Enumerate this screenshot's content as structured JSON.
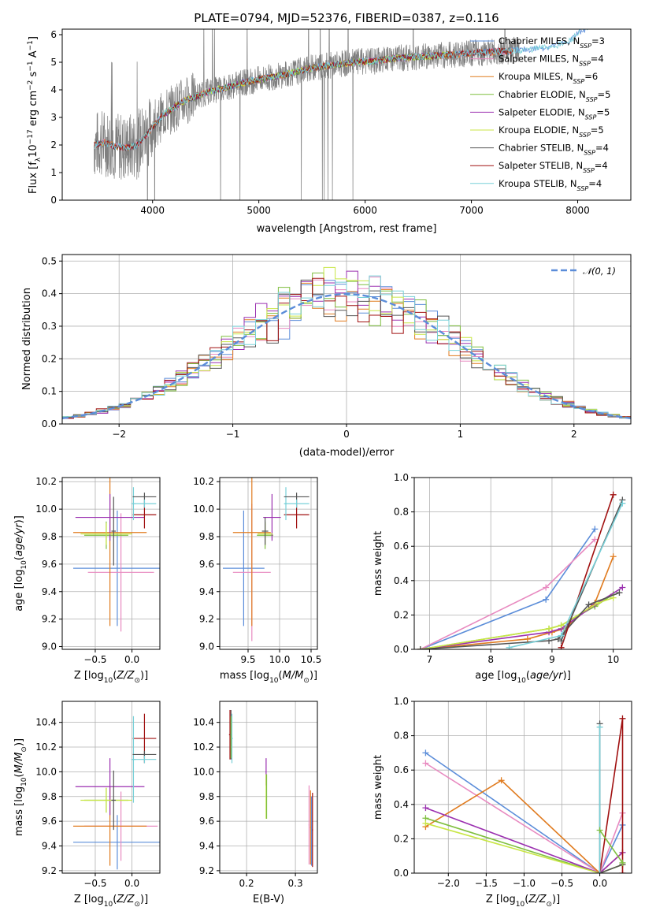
{
  "colors": {
    "chabrier_miles": "#5b8dd9",
    "salpeter_miles": "#e88ac0",
    "kroupa_miles": "#e07b1f",
    "chabrier_elodie": "#7fbf3f",
    "salpeter_elodie": "#9b30b0",
    "kroupa_elodie": "#c8e645",
    "chabrier_stelib": "#555555",
    "salpeter_stelib": "#a01010",
    "kroupa_stelib": "#78d0d8",
    "data": "#7f7f7f",
    "grid": "#b0b0b0"
  },
  "chart_data": [
    {
      "id": "spectrum",
      "type": "line",
      "title": "PLATE=0794, MJD=52376, FIBERID=0387, z=0.116",
      "xlabel": "wavelength [Angstrom, rest frame]",
      "ylabel": "Flux [f_λ10^-17 erg cm^-2 s^-1 A^-1]",
      "xlim": [
        3150,
        8500
      ],
      "ylim": [
        0,
        6.2
      ],
      "xticks": [
        "4000",
        "5000",
        "6000",
        "7000",
        "8000"
      ],
      "yticks": [
        "0",
        "1",
        "2",
        "3",
        "4",
        "5",
        "6"
      ],
      "grid": false,
      "legend_position": "top-right",
      "legend": [
        {
          "label": "Chabrier MILES, N",
          "sub": "SSP",
          "tail": "=3",
          "key": "chabrier_miles"
        },
        {
          "label": "Salpeter MILES, N",
          "sub": "SSP",
          "tail": "=4",
          "key": "salpeter_miles"
        },
        {
          "label": "Kroupa MILES, N",
          "sub": "SSP",
          "tail": "=6",
          "key": "kroupa_miles"
        },
        {
          "label": "Chabrier ELODIE, N",
          "sub": "SSP",
          "tail": "=5",
          "key": "chabrier_elodie"
        },
        {
          "label": "Salpeter ELODIE, N",
          "sub": "SSP",
          "tail": "=5",
          "key": "salpeter_elodie"
        },
        {
          "label": "Kroupa ELODIE, N",
          "sub": "SSP",
          "tail": "=5",
          "key": "kroupa_elodie"
        },
        {
          "label": "Chabrier STELIB, N",
          "sub": "SSP",
          "tail": "=4",
          "key": "chabrier_stelib"
        },
        {
          "label": "Salpeter STELIB, N",
          "sub": "SSP",
          "tail": "=4",
          "key": "salpeter_stelib"
        },
        {
          "label": "Kroupa STELIB, N",
          "sub": "SSP",
          "tail": "=4",
          "key": "kroupa_stelib"
        }
      ],
      "model_continuum": {
        "x": [
          3450,
          3550,
          3650,
          3750,
          3850,
          3950,
          4100,
          4300,
          4500,
          4700,
          4900,
          5100,
          5300,
          5500,
          5700,
          5900,
          6100,
          6300,
          6500,
          6700,
          6900,
          7100,
          7300,
          7500,
          7700,
          7900,
          8050
        ],
        "y": [
          2.0,
          2.1,
          1.95,
          1.9,
          2.0,
          2.4,
          3.1,
          3.6,
          3.9,
          4.1,
          4.3,
          4.45,
          4.6,
          4.8,
          4.9,
          5.0,
          5.05,
          5.15,
          5.2,
          5.25,
          5.3,
          5.35,
          5.4,
          5.45,
          5.55,
          5.7,
          6.2
        ]
      },
      "data_noise_amplitude": 0.9
    },
    {
      "id": "residuals",
      "type": "histogram",
      "xlabel": "(data-model)/error",
      "ylabel": "Normed distribution",
      "xlim": [
        -2.5,
        2.5
      ],
      "ylim": [
        0,
        0.52
      ],
      "xticks": [
        "−2",
        "−1",
        "0",
        "1",
        "2"
      ],
      "yticks": [
        "0.0",
        "0.1",
        "0.2",
        "0.3",
        "0.4",
        "0.5"
      ],
      "grid": true,
      "bin_width": 0.1,
      "legend_position": "top-right",
      "legend": [
        {
          "label": "N(0, 1)",
          "script": "𝒩(0, 1)",
          "style": "dashed",
          "key": "chabrier_miles"
        }
      ]
    },
    {
      "id": "age_vs_Z",
      "type": "errorbar",
      "xlabel": "Z [log10(Z/Z⊙)]",
      "ylabel": "age [log10(age/yr)]",
      "xlim": [
        -0.95,
        0.38
      ],
      "ylim": [
        8.98,
        10.23
      ],
      "xticks": [
        "−0.5",
        "0.0"
      ],
      "yticks": [
        "9.0",
        "9.2",
        "9.4",
        "9.6",
        "9.8",
        "10.0",
        "10.2"
      ],
      "grid": true,
      "points": [
        {
          "key": "chabrier_miles",
          "x": -0.2,
          "xerr": 0.6,
          "y": 9.57,
          "yerr": 0.42
        },
        {
          "key": "salpeter_miles",
          "x": -0.15,
          "xerr": 0.45,
          "y": 9.54,
          "yerr": 0.43
        },
        {
          "key": "kroupa_miles",
          "x": -0.3,
          "xerr": 0.5,
          "y": 9.83,
          "yerr": 0.68
        },
        {
          "key": "chabrier_elodie",
          "x": -0.35,
          "xerr": 0.3,
          "y": 9.81,
          "yerr": 0.1
        },
        {
          "key": "salpeter_elodie",
          "x": -0.3,
          "xerr": 0.47,
          "y": 9.94,
          "yerr": 0.17
        },
        {
          "key": "kroupa_elodie",
          "x": -0.35,
          "xerr": 0.35,
          "y": 9.82,
          "yerr": 0.08
        },
        {
          "key": "chabrier_stelib",
          "x": -0.25,
          "xerr": 0.03,
          "y": 9.84,
          "yerr": 0.25
        },
        {
          "key": "salpeter_stelib",
          "x": 0.17,
          "xerr": 0.16,
          "y": 9.96,
          "yerr": 0.1
        },
        {
          "key": "kroupa_stelib",
          "x": 0.02,
          "xerr": 0.03,
          "y": 10.04,
          "yerr": 0.12
        },
        {
          "key": "chabrier_stelib",
          "x": 0.17,
          "xerr": 0.16,
          "y": 10.09,
          "yerr": 0.03
        },
        {
          "key": "kroupa_stelib",
          "x": 0.17,
          "xerr": 0.16,
          "y": 10.04,
          "yerr": 0.03
        }
      ]
    },
    {
      "id": "age_vs_mass",
      "type": "errorbar",
      "xlabel": "mass [log10(M/M⊙)]",
      "ylabel": "",
      "xlim": [
        9.05,
        10.6
      ],
      "ylim": [
        8.98,
        10.23
      ],
      "xticks": [
        "9.5",
        "10.0",
        "10.5"
      ],
      "yticks": [
        "9.0",
        "9.2",
        "9.4",
        "9.6",
        "9.8",
        "10.0",
        "10.2"
      ],
      "grid": true,
      "points": [
        {
          "key": "chabrier_miles",
          "x": 9.43,
          "xerr": 0.33,
          "y": 9.57,
          "yerr": 0.42
        },
        {
          "key": "salpeter_miles",
          "x": 9.56,
          "xerr": 0.3,
          "y": 9.54,
          "yerr": 0.5
        },
        {
          "key": "kroupa_miles",
          "x": 9.56,
          "xerr": 0.3,
          "y": 9.83,
          "yerr": 0.68
        },
        {
          "key": "chabrier_elodie",
          "x": 9.77,
          "xerr": 0.13,
          "y": 9.81,
          "yerr": 0.1
        },
        {
          "key": "salpeter_elodie",
          "x": 9.88,
          "xerr": 0.14,
          "y": 9.94,
          "yerr": 0.17
        },
        {
          "key": "kroupa_elodie",
          "x": 9.77,
          "xerr": 0.12,
          "y": 9.82,
          "yerr": 0.08
        },
        {
          "key": "chabrier_stelib",
          "x": 9.77,
          "xerr": 0.05,
          "y": 9.84,
          "yerr": 0.1
        },
        {
          "key": "salpeter_stelib",
          "x": 10.27,
          "xerr": 0.2,
          "y": 9.96,
          "yerr": 0.1
        },
        {
          "key": "kroupa_stelib",
          "x": 10.1,
          "xerr": 0.02,
          "y": 10.04,
          "yerr": 0.12
        },
        {
          "key": "chabrier_stelib",
          "x": 10.27,
          "xerr": 0.2,
          "y": 10.09,
          "yerr": 0.03
        },
        {
          "key": "kroupa_stelib",
          "x": 10.27,
          "xerr": 0.2,
          "y": 10.04,
          "yerr": 0.03
        }
      ]
    },
    {
      "id": "weight_vs_age",
      "type": "line",
      "xlabel": "age [log10(age/yr)]",
      "ylabel": "mass weight",
      "xlim": [
        6.75,
        10.3
      ],
      "ylim": [
        0,
        1.0
      ],
      "xticks": [
        "7",
        "8",
        "9",
        "10"
      ],
      "yticks": [
        "0.0",
        "0.2",
        "0.4",
        "0.6",
        "0.8",
        "1.0"
      ],
      "grid": true,
      "series": [
        {
          "key": "chabrier_miles",
          "x": [
            6.85,
            8.9,
            9.7
          ],
          "y": [
            0.0,
            0.29,
            0.7
          ]
        },
        {
          "key": "salpeter_miles",
          "x": [
            6.85,
            8.9,
            9.7
          ],
          "y": [
            0.0,
            0.36,
            0.64
          ]
        },
        {
          "key": "kroupa_miles",
          "x": [
            6.85,
            8.6,
            9.0,
            9.2,
            9.7,
            10.0
          ],
          "y": [
            0.0,
            0.06,
            0.1,
            0.12,
            0.27,
            0.54
          ]
        },
        {
          "key": "chabrier_elodie",
          "x": [
            6.85,
            8.95,
            9.15,
            9.7,
            10.0
          ],
          "y": [
            0.0,
            0.12,
            0.14,
            0.25,
            0.32
          ]
        },
        {
          "key": "salpeter_elodie",
          "x": [
            6.85,
            8.95,
            9.15,
            9.7,
            10.15
          ],
          "y": [
            0.0,
            0.1,
            0.12,
            0.26,
            0.36
          ]
        },
        {
          "key": "kroupa_elodie",
          "x": [
            6.85,
            8.95,
            9.15,
            9.75,
            10.0
          ],
          "y": [
            0.0,
            0.12,
            0.14,
            0.27,
            0.3
          ]
        },
        {
          "key": "chabrier_stelib",
          "x": [
            6.85,
            8.95,
            9.1,
            9.6,
            10.1
          ],
          "y": [
            0.0,
            0.05,
            0.06,
            0.26,
            0.33
          ]
        },
        {
          "key": "salpeter_stelib",
          "x": [
            9.15,
            10.0
          ],
          "y": [
            0.01,
            0.9
          ]
        },
        {
          "key": "chabrier_stelib",
          "x": [
            9.15,
            10.15
          ],
          "y": [
            0.05,
            0.87
          ]
        },
        {
          "key": "kroupa_stelib",
          "x": [
            8.3,
            9.15,
            10.15
          ],
          "y": [
            0.01,
            0.08,
            0.85
          ]
        }
      ]
    },
    {
      "id": "mass_vs_Z",
      "type": "errorbar",
      "xlabel": "Z [log10(Z/Z⊙)]",
      "ylabel": "mass [log10(M/M⊙)]",
      "xlim": [
        -0.95,
        0.38
      ],
      "ylim": [
        9.18,
        10.57
      ],
      "xticks": [
        "−0.5",
        "0.0"
      ],
      "yticks": [
        "9.2",
        "9.4",
        "9.6",
        "9.8",
        "10.0",
        "10.2",
        "10.4"
      ],
      "grid": true,
      "points": [
        {
          "key": "chabrier_miles",
          "x": -0.2,
          "xerr": 0.6,
          "y": 9.43,
          "yerr": 0.22
        },
        {
          "key": "salpeter_miles",
          "x": -0.15,
          "xerr": 0.5,
          "y": 9.56,
          "yerr": 0.28
        },
        {
          "key": "kroupa_miles",
          "x": -0.3,
          "xerr": 0.5,
          "y": 9.56,
          "yerr": 0.32
        },
        {
          "key": "chabrier_elodie",
          "x": -0.35,
          "xerr": 0.3,
          "y": 9.77,
          "yerr": 0.1
        },
        {
          "key": "salpeter_elodie",
          "x": -0.3,
          "xerr": 0.47,
          "y": 9.88,
          "yerr": 0.23
        },
        {
          "key": "kroupa_elodie",
          "x": -0.35,
          "xerr": 0.35,
          "y": 9.77,
          "yerr": 0.1
        },
        {
          "key": "chabrier_stelib",
          "x": -0.25,
          "xerr": 0.03,
          "y": 9.77,
          "yerr": 0.24
        },
        {
          "key": "salpeter_stelib",
          "x": 0.17,
          "xerr": 0.16,
          "y": 10.27,
          "yerr": 0.2
        },
        {
          "key": "kroupa_stelib",
          "x": 0.02,
          "xerr": 0.03,
          "y": 10.1,
          "yerr": 0.35
        },
        {
          "key": "chabrier_stelib",
          "x": 0.17,
          "xerr": 0.16,
          "y": 10.14,
          "yerr": 0.03
        },
        {
          "key": "kroupa_stelib",
          "x": 0.17,
          "xerr": 0.16,
          "y": 10.1,
          "yerr": 0.03
        }
      ]
    },
    {
      "id": "mass_vs_ebv",
      "type": "errorbar",
      "xlabel": "E(B-V)",
      "ylabel": "",
      "xlim": [
        0.145,
        0.345
      ],
      "ylim": [
        9.18,
        10.57
      ],
      "xticks": [
        "0.2",
        "0.3"
      ],
      "yticks": [
        "9.2",
        "9.4",
        "9.6",
        "9.8",
        "10.0",
        "10.2",
        "10.4"
      ],
      "grid": true,
      "points": [
        {
          "key": "salpeter_stelib",
          "x": 0.166,
          "xerr": 0.002,
          "y": 10.3,
          "yerr": 0.2
        },
        {
          "key": "chabrier_stelib",
          "x": 0.168,
          "xerr": 0.002,
          "y": 10.3,
          "yerr": 0.2
        },
        {
          "key": "kroupa_stelib",
          "x": 0.17,
          "xerr": 0.002,
          "y": 10.27,
          "yerr": 0.2
        },
        {
          "key": "chabrier_elodie",
          "x": 0.168,
          "xerr": 0.001,
          "y": 10.28,
          "yerr": 0.17
        },
        {
          "key": "salpeter_elodie",
          "x": 0.24,
          "xerr": 0.001,
          "y": 10.0,
          "yerr": 0.11
        },
        {
          "key": "kroupa_elodie",
          "x": 0.24,
          "xerr": 0.001,
          "y": 9.8,
          "yerr": 0.18
        },
        {
          "key": "chabrier_elodie",
          "x": 0.241,
          "xerr": 0.001,
          "y": 9.8,
          "yerr": 0.18
        },
        {
          "key": "salpeter_miles",
          "x": 0.328,
          "xerr": 0.001,
          "y": 9.57,
          "yerr": 0.32
        },
        {
          "key": "chabrier_miles",
          "x": 0.333,
          "xerr": 0.001,
          "y": 9.52,
          "yerr": 0.28
        },
        {
          "key": "kroupa_miles",
          "x": 0.331,
          "xerr": 0.001,
          "y": 9.55,
          "yerr": 0.3
        },
        {
          "key": "salpeter_stelib",
          "x": 0.335,
          "xerr": 0.001,
          "y": 9.53,
          "yerr": 0.3
        }
      ]
    },
    {
      "id": "weight_vs_Z",
      "type": "line",
      "xlabel": "Z [log10(Z/Z⊙)]",
      "ylabel": "mass weight",
      "xlim": [
        -2.45,
        0.42
      ],
      "ylim": [
        0,
        1.0
      ],
      "xticks": [
        "−2.0",
        "−1.5",
        "−1.0",
        "−0.5",
        "0.0"
      ],
      "yticks": [
        "0.0",
        "0.2",
        "0.4",
        "0.6",
        "0.8",
        "1.0"
      ],
      "grid": true,
      "series": [
        {
          "key": "chabrier_miles",
          "x": [
            -2.3,
            0.0,
            0.3
          ],
          "y": [
            0.7,
            0.0,
            0.28
          ]
        },
        {
          "key": "salpeter_miles",
          "x": [
            -2.3,
            0.0,
            0.3
          ],
          "y": [
            0.64,
            0.0,
            0.35
          ]
        },
        {
          "key": "kroupa_miles",
          "x": [
            -2.3,
            -1.3,
            0.0,
            0.3
          ],
          "y": [
            0.27,
            0.54,
            0.0,
            0.12
          ]
        },
        {
          "key": "chabrier_elodie",
          "x": [
            -2.3,
            0.0,
            0.3
          ],
          "y": [
            0.32,
            0.0,
            0.05
          ]
        },
        {
          "key": "salpeter_elodie",
          "x": [
            -2.3,
            0.0,
            0.3
          ],
          "y": [
            0.38,
            0.0,
            0.12
          ]
        },
        {
          "key": "kroupa_elodie",
          "x": [
            -2.3,
            0.0,
            0.3
          ],
          "y": [
            0.29,
            0.0,
            0.05
          ]
        },
        {
          "key": "chabrier_stelib",
          "x": [
            0.0,
            0.0,
            0.3
          ],
          "y": [
            0.87,
            0.0,
            0.05
          ]
        },
        {
          "key": "salpeter_stelib",
          "x": [
            0.0,
            0.3,
            0.3
          ],
          "y": [
            0.0,
            0.9,
            0.0
          ]
        },
        {
          "key": "kroupa_stelib",
          "x": [
            0.0,
            0.0
          ],
          "y": [
            0.0,
            0.85
          ]
        },
        {
          "key": "chabrier_elodie",
          "x": [
            0.0,
            0.3
          ],
          "y": [
            0.25,
            0.06
          ]
        }
      ]
    }
  ]
}
